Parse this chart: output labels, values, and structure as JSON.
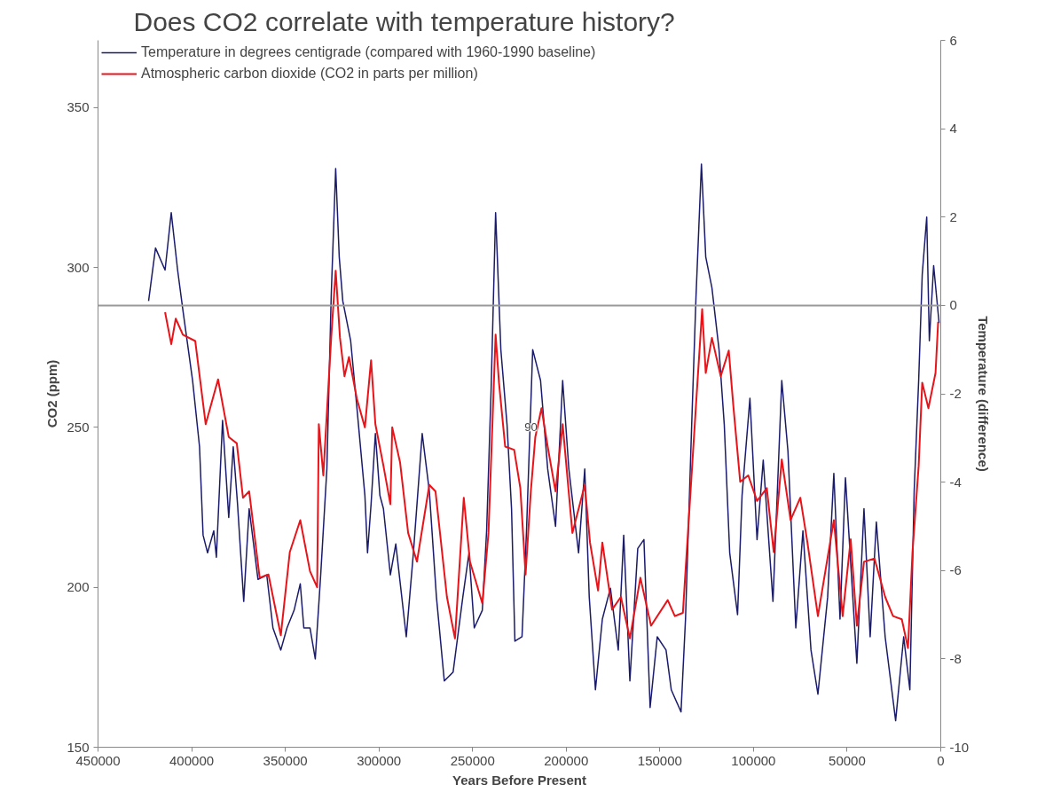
{
  "chart_data": {
    "type": "line",
    "title": "Does CO2 correlate with temperature history?",
    "xlabel": "Years Before Present",
    "ylabel": "CO2 (ppm)",
    "y2label": "Temperature (difference)",
    "xlim": [
      450000,
      0
    ],
    "xticks": [
      450000,
      400000,
      350000,
      300000,
      250000,
      200000,
      150000,
      100000,
      50000,
      0
    ],
    "ylim": [
      150,
      371
    ],
    "yticks": [
      150,
      200,
      250,
      300,
      350
    ],
    "y2lim": [
      -10,
      6
    ],
    "y2ticks": [
      -10,
      -8,
      -6,
      -4,
      -2,
      0,
      2,
      4,
      6
    ],
    "legend": "top left",
    "ref_lines": [
      {
        "axis": "y2",
        "value": 0,
        "color": "#999999"
      }
    ],
    "annotations": [
      {
        "text": "90",
        "x": 218900,
        "y": 250
      }
    ],
    "series": [
      {
        "name": "Temperature in degrees centigrade (compared with 1960-1990 baseline)",
        "color": "#1b1b6b",
        "axis": "y2",
        "x": [
          423000,
          419300,
          414200,
          410900,
          407500,
          404700,
          399500,
          395800,
          393900,
          391500,
          388200,
          386800,
          383500,
          380200,
          377800,
          375500,
          372200,
          369300,
          364600,
          359900,
          356600,
          352400,
          349100,
          345300,
          342000,
          340100,
          336800,
          334000,
          331100,
          327800,
          325500,
          323100,
          321200,
          319300,
          315100,
          311800,
          307500,
          306100,
          304200,
          301900,
          299500,
          297600,
          293900,
          291000,
          285400,
          281600,
          276900,
          273100,
          269300,
          265100,
          260400,
          255200,
          251900,
          249100,
          244800,
          242500,
          240100,
          237700,
          234900,
          231600,
          229200,
          227400,
          223600,
          221200,
          217900,
          213700,
          209900,
          205700,
          201900,
          198600,
          193400,
          190100,
          187700,
          184400,
          180700,
          176400,
          172200,
          169300,
          166000,
          161800,
          158500,
          155200,
          151400,
          146700,
          143900,
          138700,
          136300,
          133000,
          130700,
          127800,
          125500,
          122200,
          118400,
          115600,
          112700,
          108500,
          106100,
          101900,
          98100,
          94800,
          89600,
          84900,
          81600,
          77400,
          73600,
          69300,
          65600,
          60400,
          57100,
          53800,
          50900,
          44800,
          41000,
          37700,
          34400,
          29700,
          24100,
          19800,
          16500,
          14200,
          11800,
          9900,
          7500,
          6100,
          3800,
          900
        ],
        "values": [
          0.1,
          1.3,
          0.8,
          2.1,
          0.8,
          -0.1,
          -1.7,
          -3.2,
          -5.2,
          -5.6,
          -5.1,
          -5.7,
          -2.6,
          -4.8,
          -3.2,
          -4.5,
          -6.7,
          -4.6,
          -6.2,
          -6.1,
          -7.3,
          -7.8,
          -7.3,
          -6.9,
          -6.3,
          -7.3,
          -7.3,
          -8.0,
          -6.1,
          -3.7,
          0.2,
          3.1,
          1.1,
          0.1,
          -0.8,
          -2.3,
          -4.3,
          -5.6,
          -4.5,
          -2.9,
          -4.3,
          -4.6,
          -6.1,
          -5.4,
          -7.5,
          -5.6,
          -2.9,
          -4.2,
          -6.6,
          -8.5,
          -8.3,
          -6.6,
          -5.6,
          -7.3,
          -6.9,
          -5.1,
          -1.9,
          2.1,
          -1.0,
          -2.7,
          -4.6,
          -7.6,
          -7.5,
          -5.1,
          -1.0,
          -1.7,
          -3.7,
          -5.0,
          -1.7,
          -3.7,
          -5.6,
          -3.7,
          -6.6,
          -8.7,
          -7.1,
          -6.4,
          -7.8,
          -5.2,
          -8.5,
          -5.5,
          -5.3,
          -9.1,
          -7.5,
          -7.8,
          -8.7,
          -9.2,
          -7.1,
          -2.7,
          0.2,
          3.2,
          1.1,
          0.4,
          -1.0,
          -2.7,
          -5.6,
          -7.0,
          -4.3,
          -2.1,
          -5.3,
          -3.5,
          -6.7,
          -1.7,
          -3.3,
          -7.3,
          -5.1,
          -7.8,
          -8.8,
          -6.6,
          -3.8,
          -7.1,
          -3.9,
          -8.1,
          -4.6,
          -7.5,
          -4.9,
          -7.5,
          -9.4,
          -7.5,
          -8.7,
          -4.2,
          -1.7,
          0.7,
          2.0,
          -0.8,
          0.9,
          -0.4
        ]
      },
      {
        "name": "Atmospheric carbon dioxide (CO2 in parts per million)",
        "color": "#e8141a",
        "x": [
          414200,
          410900,
          408500,
          404700,
          398100,
          392500,
          385900,
          380200,
          375900,
          372600,
          369300,
          363700,
          359000,
          352400,
          347600,
          342000,
          336800,
          333000,
          332100,
          329700,
          325500,
          323100,
          320800,
          318400,
          316000,
          311800,
          307500,
          304200,
          301900,
          297600,
          293900,
          292900,
          288700,
          284400,
          279700,
          273100,
          269800,
          263700,
          259400,
          254700,
          251400,
          244800,
          241500,
          237700,
          235900,
          232600,
          227800,
          224500,
          221700,
          218900,
          216500,
          213200,
          209900,
          205700,
          201900,
          196700,
          190100,
          187300,
          183000,
          180700,
          175500,
          170800,
          166000,
          160400,
          154700,
          145800,
          142000,
          137700,
          133500,
          130700,
          127400,
          125500,
          122200,
          117500,
          113200,
          110800,
          107100,
          102800,
          98100,
          92900,
          89200,
          84900,
          80200,
          75000,
          71200,
          65600,
          57100,
          52400,
          48100,
          44800,
          41000,
          35400,
          29700,
          25500,
          20800,
          17500,
          15100,
          11800,
          9900,
          6600,
          2800,
          1400
        ],
        "values": [
          286,
          276,
          284,
          279,
          277,
          251,
          265,
          247,
          245,
          228,
          230,
          203,
          204,
          185,
          211,
          221,
          205,
          200,
          251,
          235,
          278,
          299,
          278,
          266,
          272,
          259,
          250,
          271,
          251,
          238,
          226,
          250,
          239,
          217,
          208,
          232,
          230,
          197,
          184,
          228,
          208,
          195,
          217,
          279,
          264,
          244,
          243,
          231,
          204,
          230,
          247,
          256,
          244,
          230,
          251,
          217,
          232,
          214,
          199,
          214,
          193,
          197,
          184,
          203,
          188,
          196,
          191,
          192,
          231,
          257,
          287,
          267,
          278,
          266,
          274,
          257,
          233,
          235,
          227,
          231,
          211,
          240,
          221,
          228,
          214,
          191,
          221,
          191,
          215,
          188,
          208,
          209,
          197,
          191,
          190,
          181,
          211,
          238,
          264,
          256,
          267,
          283
        ]
      }
    ]
  }
}
